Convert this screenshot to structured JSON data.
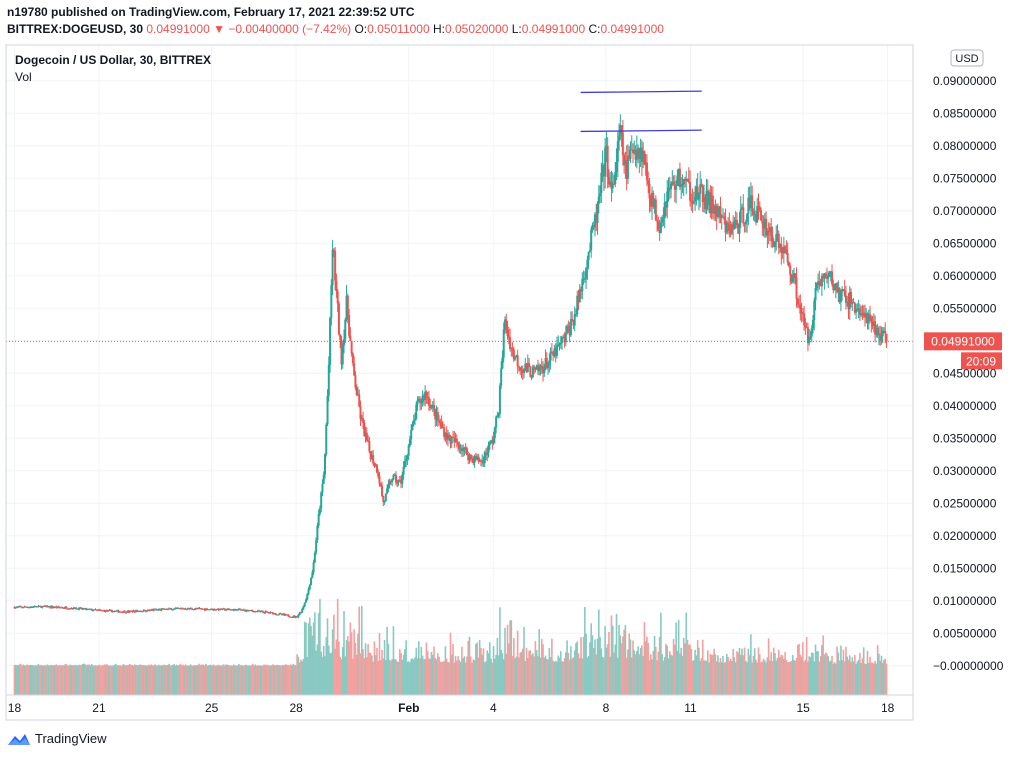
{
  "header": {
    "publisher_line": "n19780 published on TradingView.com, February 17, 2021 22:39:52 UTC",
    "symbol": "BITTREX:DOGEUSD, 30",
    "last": "0.04991000",
    "change": "−0.00400000 (−7.42%)",
    "o_label": "O:",
    "o": "0.05011000",
    "h_label": "H:",
    "h": "0.05020000",
    "l_label": "L:",
    "l": "0.04991000",
    "c_label": "C:",
    "c": "0.04991000"
  },
  "legend": {
    "title": "Dogecoin / US Dollar, 30, BITTREX",
    "vol": "Vol"
  },
  "footer": {
    "brand": "TradingView"
  },
  "colors": {
    "up": "#26a69a",
    "down": "#ef5350",
    "up_vol": "#89c9c2",
    "down_vol": "#f4a09e",
    "grid": "#f0f3fa",
    "axis_text": "#131722",
    "trendline": "#3f3fd6",
    "price_line": "#ef5350",
    "brand": "#2962ff"
  },
  "chart_data": {
    "type": "candlestick",
    "title": "Dogecoin / US Dollar, 30, BITTREX",
    "currency_label": "USD",
    "y_range": [
      -0.0045,
      0.0955
    ],
    "y_ticks": [
      "0.09000000",
      "0.08500000",
      "0.08000000",
      "0.07500000",
      "0.07000000",
      "0.06500000",
      "0.06000000",
      "0.05500000",
      "0.05000000",
      "0.04500000",
      "0.04000000",
      "0.03500000",
      "0.03000000",
      "0.02500000",
      "0.02000000",
      "0.01500000",
      "0.01000000",
      "0.00500000",
      "−0.00000000"
    ],
    "y_tick_values": [
      0.09,
      0.085,
      0.08,
      0.075,
      0.07,
      0.065,
      0.06,
      0.055,
      0.05,
      0.045,
      0.04,
      0.035,
      0.03,
      0.025,
      0.02,
      0.015,
      0.01,
      0.005,
      0.0
    ],
    "x_ticks": [
      {
        "label": "18",
        "day": 0
      },
      {
        "label": "21",
        "day": 3
      },
      {
        "label": "25",
        "day": 7
      },
      {
        "label": "28",
        "day": 10
      },
      {
        "label": "Feb",
        "day": 14
      },
      {
        "label": "4",
        "day": 17
      },
      {
        "label": "8",
        "day": 21
      },
      {
        "label": "11",
        "day": 24
      },
      {
        "label": "15",
        "day": 28
      },
      {
        "label": "18",
        "day": 31
      }
    ],
    "x_range_days": [
      -0.3,
      31.9
    ],
    "last_price_label": "0.04991000",
    "last_price_value": 0.04991,
    "countdown_label": "20:09",
    "price_series": [
      [
        0,
        0.009
      ],
      [
        1,
        0.0091
      ],
      [
        2,
        0.0089
      ],
      [
        3,
        0.0085
      ],
      [
        4,
        0.0083
      ],
      [
        5,
        0.0086
      ],
      [
        6,
        0.0088
      ],
      [
        7,
        0.0087
      ],
      [
        8,
        0.0086
      ],
      [
        9,
        0.0082
      ],
      [
        10,
        0.0075
      ],
      [
        10.2,
        0.0085
      ],
      [
        10.4,
        0.011
      ],
      [
        10.6,
        0.015
      ],
      [
        10.8,
        0.023
      ],
      [
        11.0,
        0.03
      ],
      [
        11.15,
        0.045
      ],
      [
        11.3,
        0.065
      ],
      [
        11.45,
        0.056
      ],
      [
        11.6,
        0.047
      ],
      [
        11.8,
        0.056
      ],
      [
        12.0,
        0.046
      ],
      [
        12.3,
        0.038
      ],
      [
        12.6,
        0.033
      ],
      [
        12.9,
        0.03
      ],
      [
        13.1,
        0.025
      ],
      [
        13.4,
        0.029
      ],
      [
        13.7,
        0.028
      ],
      [
        14.0,
        0.034
      ],
      [
        14.3,
        0.04
      ],
      [
        14.6,
        0.042
      ],
      [
        15.0,
        0.038
      ],
      [
        15.4,
        0.035
      ],
      [
        15.8,
        0.034
      ],
      [
        16.2,
        0.032
      ],
      [
        16.6,
        0.0315
      ],
      [
        17.0,
        0.035
      ],
      [
        17.2,
        0.04
      ],
      [
        17.4,
        0.053
      ],
      [
        17.7,
        0.048
      ],
      [
        18.0,
        0.046
      ],
      [
        18.5,
        0.045
      ],
      [
        19.0,
        0.047
      ],
      [
        19.5,
        0.05
      ],
      [
        19.9,
        0.054
      ],
      [
        20.3,
        0.062
      ],
      [
        20.7,
        0.07
      ],
      [
        21.0,
        0.079
      ],
      [
        21.2,
        0.072
      ],
      [
        21.5,
        0.082
      ],
      [
        21.7,
        0.076
      ],
      [
        22.0,
        0.08
      ],
      [
        22.3,
        0.079
      ],
      [
        22.6,
        0.072
      ],
      [
        22.9,
        0.068
      ],
      [
        23.2,
        0.073
      ],
      [
        23.6,
        0.075
      ],
      [
        24.0,
        0.073
      ],
      [
        24.5,
        0.072
      ],
      [
        24.9,
        0.07
      ],
      [
        25.3,
        0.067
      ],
      [
        25.7,
        0.068
      ],
      [
        26.1,
        0.071
      ],
      [
        26.5,
        0.069
      ],
      [
        26.9,
        0.066
      ],
      [
        27.3,
        0.064
      ],
      [
        27.7,
        0.059
      ],
      [
        28.0,
        0.053
      ],
      [
        28.2,
        0.05
      ],
      [
        28.5,
        0.059
      ],
      [
        28.9,
        0.06
      ],
      [
        29.3,
        0.057
      ],
      [
        29.7,
        0.056
      ],
      [
        30.1,
        0.054
      ],
      [
        30.5,
        0.052
      ],
      [
        31.0,
        0.0499
      ]
    ],
    "vol_ranges": [
      [
        0,
        10,
        0.0002
      ],
      [
        10,
        10.3,
        0.0015
      ],
      [
        10.3,
        11.2,
        0.009
      ],
      [
        11.2,
        12.5,
        0.007
      ],
      [
        12.5,
        14.0,
        0.004
      ],
      [
        14.0,
        17.0,
        0.003
      ],
      [
        17.0,
        18.0,
        0.006
      ],
      [
        18.0,
        20.0,
        0.004
      ],
      [
        20.0,
        22.5,
        0.007
      ],
      [
        22.5,
        24.5,
        0.005
      ],
      [
        24.5,
        27.5,
        0.003
      ],
      [
        27.5,
        29.0,
        0.004
      ],
      [
        29.0,
        31.0,
        0.002
      ]
    ],
    "trendlines": [
      {
        "from": [
          20.1,
          0.0882
        ],
        "to": [
          24.4,
          0.0884
        ]
      },
      {
        "from": [
          20.1,
          0.0822
        ],
        "to": [
          24.4,
          0.0824
        ]
      }
    ]
  }
}
